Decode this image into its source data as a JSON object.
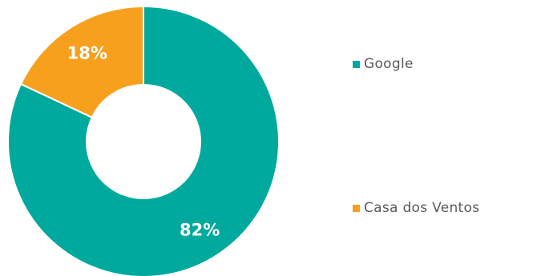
{
  "chart_data": {
    "type": "pie",
    "donut": true,
    "series": [
      {
        "name": "Google",
        "value": 82,
        "label": "82%",
        "color": "#00A99D"
      },
      {
        "name": "Casa dos Ventos",
        "value": 18,
        "label": "18%",
        "color": "#F7A01D"
      }
    ],
    "legend_position": "right",
    "start_angle_deg": 0,
    "direction": "clockwise"
  },
  "legend": {
    "items": [
      {
        "label": "Google",
        "color": "#00A99D"
      },
      {
        "label": "Casa dos Ventos",
        "color": "#F7A01D"
      }
    ]
  }
}
